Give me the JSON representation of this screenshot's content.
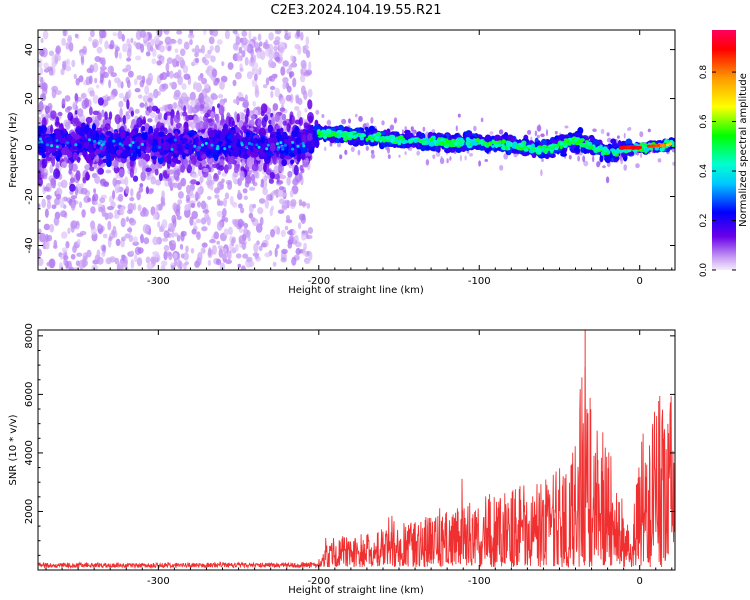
{
  "title": "C2E3.2024.104.19.55.R21",
  "colors": {
    "snr_line": "#f03030",
    "axis": "#000000",
    "spec_core": "#5a00e0",
    "spec_halo": "#d4b4f4"
  },
  "chart_data": [
    {
      "type": "heatmap",
      "xlabel": "Height of straight line (km)",
      "ylabel": "Frequency (Hz)",
      "xlim": [
        -375,
        22
      ],
      "ylim": [
        -50,
        48
      ],
      "xticks": [
        -300,
        -200,
        -100,
        0
      ],
      "yticks": [
        40,
        20,
        0,
        -20,
        -40
      ],
      "colorbar": {
        "label": "Normalized spectral amplitude",
        "range": [
          0,
          0.97
        ],
        "ticks": [
          0.0,
          0.2,
          0.4,
          0.6,
          0.8
        ],
        "colormap": [
          "#f5ecfc",
          "#6a00e8",
          "#0000ff",
          "#00ffff",
          "#00ff00",
          "#ffff00",
          "#ff0000",
          "#ff0060"
        ]
      },
      "ridge": {
        "x": [
          -370,
          -300,
          -210,
          -200,
          -180,
          -150,
          -120,
          -100,
          -80,
          -60,
          -40,
          -20,
          0,
          15,
          22
        ],
        "y": [
          2,
          1,
          1,
          6,
          5,
          3,
          2,
          2,
          1,
          -1,
          3,
          -2,
          0,
          1,
          2
        ]
      },
      "peak": {
        "x": [
          -12,
          0
        ],
        "y": 0,
        "amplitude": 0.95
      }
    },
    {
      "type": "line",
      "xlabel": "Height of straight line (km)",
      "ylabel": "SNR (10 * v/v)",
      "xlim": [
        -375,
        22
      ],
      "ylim": [
        0,
        8200
      ],
      "xticks": [
        -300,
        -200,
        -100,
        0
      ],
      "yticks": [
        2000,
        4000,
        6000,
        8000
      ],
      "envelope": {
        "x": [
          -375,
          -300,
          -200,
          -190,
          -180,
          -150,
          -120,
          -100,
          -80,
          -60,
          -50,
          -40,
          -35,
          -30,
          -20,
          -15,
          -10,
          -5,
          0,
          10,
          15,
          22
        ],
        "y": [
          230,
          220,
          240,
          900,
          700,
          1100,
          1400,
          1800,
          2000,
          2200,
          2500,
          3200,
          5500,
          4500,
          3500,
          2000,
          1500,
          800,
          3500,
          4200,
          4800,
          4500
        ]
      }
    }
  ]
}
